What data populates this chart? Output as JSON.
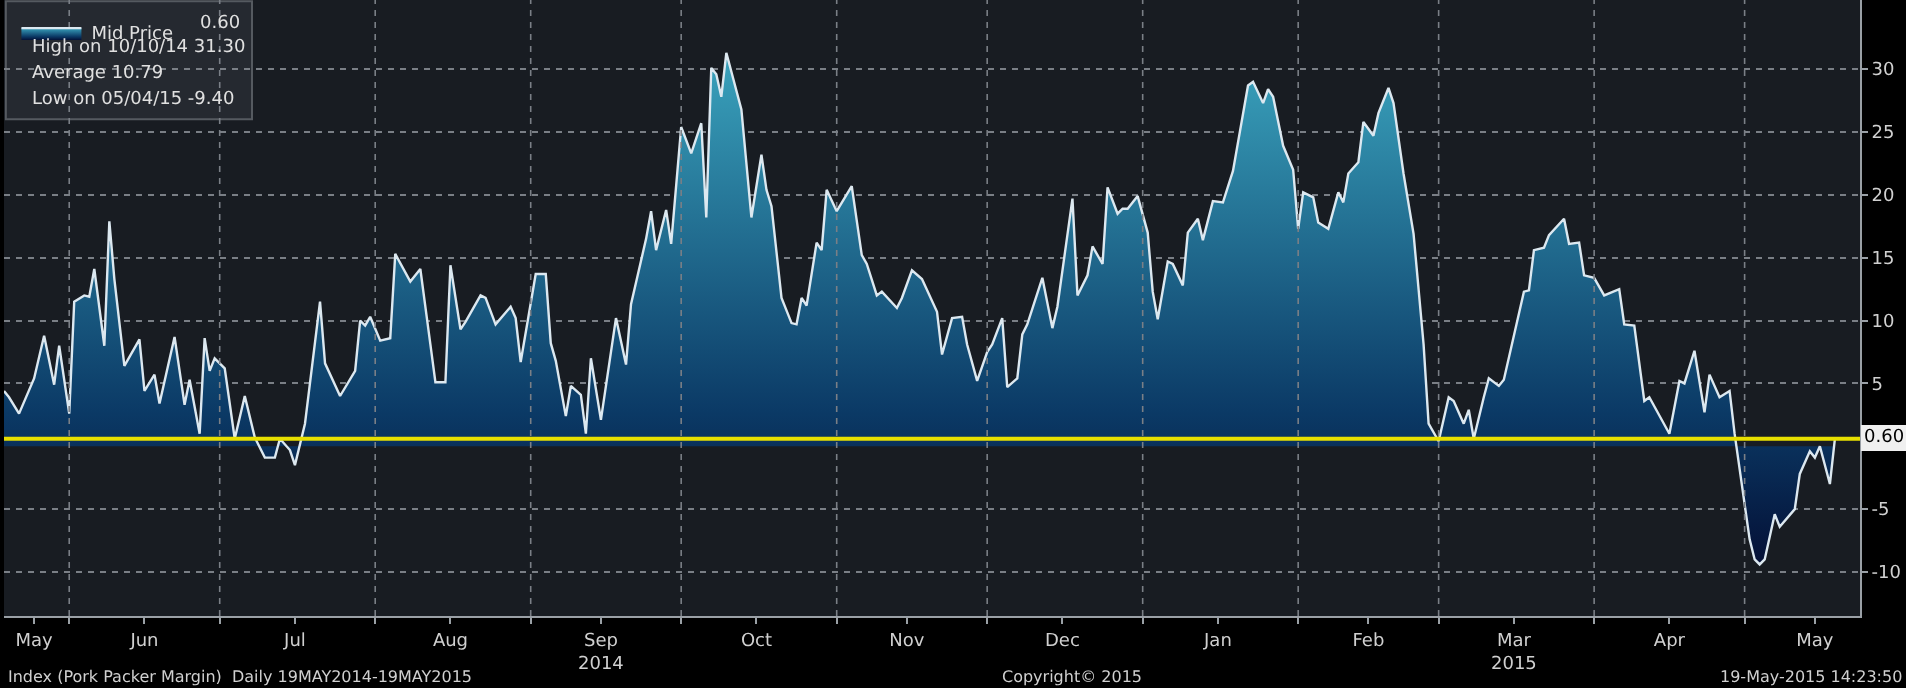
{
  "chart_data": {
    "type": "area",
    "x": [
      "2014-05-19",
      "2014-05-20",
      "2014-05-22",
      "2014-05-25",
      "2014-05-27",
      "2014-05-29",
      "2014-05-30",
      "2014-06-01",
      "2014-06-02",
      "2014-06-04",
      "2014-06-05",
      "2014-06-06",
      "2014-06-08",
      "2014-06-09",
      "2014-06-10",
      "2014-06-12",
      "2014-06-15",
      "2014-06-16",
      "2014-06-18",
      "2014-06-19",
      "2014-06-22",
      "2014-06-24",
      "2014-06-25",
      "2014-06-27",
      "2014-06-28",
      "2014-06-29",
      "2014-06-30",
      "2014-07-02",
      "2014-07-04",
      "2014-07-06",
      "2014-07-08",
      "2014-07-10",
      "2014-07-12",
      "2014-07-13",
      "2014-07-15",
      "2014-07-16",
      "2014-07-18",
      "2014-07-21",
      "2014-07-22",
      "2014-07-25",
      "2014-07-28",
      "2014-07-29",
      "2014-07-30",
      "2014-07-31",
      "2014-08-02",
      "2014-08-04",
      "2014-08-05",
      "2014-08-08",
      "2014-08-10",
      "2014-08-12",
      "2014-08-13",
      "2014-08-15",
      "2014-08-16",
      "2014-08-18",
      "2014-08-19",
      "2014-08-22",
      "2014-08-23",
      "2014-08-25",
      "2014-08-28",
      "2014-08-29",
      "2014-08-30",
      "2014-09-02",
      "2014-09-04",
      "2014-09-05",
      "2014-09-06",
      "2014-09-08",
      "2014-09-09",
      "2014-09-11",
      "2014-09-12",
      "2014-09-13",
      "2014-09-15",
      "2014-09-18",
      "2014-09-20",
      "2014-09-21",
      "2014-09-24",
      "2014-09-25",
      "2014-09-26",
      "2014-09-28",
      "2014-09-29",
      "2014-10-01",
      "2014-10-03",
      "2014-10-05",
      "2014-10-06",
      "2014-10-07",
      "2014-10-08",
      "2014-10-09",
      "2014-10-10",
      "2014-10-13",
      "2014-10-15",
      "2014-10-17",
      "2014-10-18",
      "2014-10-19",
      "2014-10-21",
      "2014-10-23",
      "2014-10-24",
      "2014-10-25",
      "2014-10-26",
      "2014-10-28",
      "2014-10-29",
      "2014-10-30",
      "2014-11-01",
      "2014-11-04",
      "2014-11-06",
      "2014-11-07",
      "2014-11-09",
      "2014-11-10",
      "2014-11-13",
      "2014-11-14",
      "2014-11-16",
      "2014-11-18",
      "2014-11-21",
      "2014-11-22",
      "2014-11-24",
      "2014-11-26",
      "2014-11-27",
      "2014-11-29",
      "2014-12-01",
      "2014-12-02",
      "2014-12-04",
      "2014-12-05",
      "2014-12-07",
      "2014-12-08",
      "2014-12-09",
      "2014-12-12",
      "2014-12-14",
      "2014-12-15",
      "2014-12-18",
      "2014-12-19",
      "2014-12-21",
      "2014-12-22",
      "2014-12-24",
      "2014-12-25",
      "2014-12-27",
      "2014-12-28",
      "2014-12-29",
      "2014-12-31",
      "2015-01-02",
      "2015-01-03",
      "2015-01-04",
      "2015-01-06",
      "2015-01-07",
      "2015-01-09",
      "2015-01-10",
      "2015-01-12",
      "2015-01-13",
      "2015-01-15",
      "2015-01-17",
      "2015-01-19",
      "2015-01-22",
      "2015-01-23",
      "2015-01-25",
      "2015-01-26",
      "2015-01-27",
      "2015-01-29",
      "2015-01-31",
      "2015-02-01",
      "2015-02-02",
      "2015-02-04",
      "2015-02-05",
      "2015-02-07",
      "2015-02-09",
      "2015-02-10",
      "2015-02-11",
      "2015-02-13",
      "2015-02-14",
      "2015-02-16",
      "2015-02-17",
      "2015-02-19",
      "2015-02-20",
      "2015-02-22",
      "2015-02-24",
      "2015-02-26",
      "2015-02-27",
      "2015-03-01",
      "2015-03-03",
      "2015-03-04",
      "2015-03-06",
      "2015-03-07",
      "2015-03-08",
      "2015-03-10",
      "2015-03-11",
      "2015-03-13",
      "2015-03-14",
      "2015-03-18",
      "2015-03-19",
      "2015-03-20",
      "2015-03-22",
      "2015-03-23",
      "2015-03-26",
      "2015-03-27",
      "2015-03-29",
      "2015-03-30",
      "2015-04-01",
      "2015-04-03",
      "2015-04-06",
      "2015-04-07",
      "2015-04-09",
      "2015-04-11",
      "2015-04-12",
      "2015-04-16",
      "2015-04-18",
      "2015-04-19",
      "2015-04-21",
      "2015-04-23",
      "2015-04-24",
      "2015-04-26",
      "2015-04-28",
      "2015-04-29",
      "2015-05-01",
      "2015-05-02",
      "2015-05-03",
      "2015-05-04",
      "2015-05-05",
      "2015-05-07",
      "2015-05-08",
      "2015-05-11",
      "2015-05-12",
      "2015-05-14",
      "2015-05-15",
      "2015-05-16",
      "2015-05-18",
      "2015-05-19"
    ],
    "series": [
      {
        "name": "Mid Price",
        "color": "#dce8f0",
        "values": [
          4.4,
          3.9,
          2.6,
          5.4,
          8.8,
          4.9,
          8.0,
          2.6,
          11.5,
          12.0,
          11.9,
          14.1,
          8.0,
          17.9,
          13.3,
          6.4,
          8.5,
          4.4,
          5.7,
          3.4,
          8.7,
          3.3,
          5.3,
          1.0,
          8.6,
          6.0,
          7.0,
          6.2,
          0.6,
          4.0,
          0.7,
          -0.9,
          -0.9,
          0.6,
          -0.3,
          -1.5,
          1.8,
          11.5,
          6.6,
          4.0,
          6.0,
          10.0,
          9.6,
          10.3,
          8.4,
          8.6,
          15.3,
          13.1,
          14.1,
          8.1,
          5.1,
          5.1,
          14.4,
          9.3,
          9.9,
          12.0,
          11.8,
          9.7,
          11.1,
          10.2,
          6.7,
          13.7,
          13.7,
          8.2,
          6.8,
          2.4,
          4.8,
          4.1,
          1.0,
          7.0,
          2.1,
          10.2,
          6.5,
          11.3,
          16.5,
          18.7,
          15.6,
          18.8,
          16.1,
          25.4,
          23.3,
          25.7,
          18.2,
          30.1,
          29.6,
          27.8,
          31.3,
          26.8,
          18.2,
          23.2,
          20.4,
          19.1,
          11.8,
          9.8,
          9.7,
          11.8,
          11.2,
          16.2,
          15.6,
          20.4,
          18.7,
          20.7,
          15.2,
          14.5,
          12.0,
          12.3,
          11.0,
          11.8,
          14.0,
          13.3,
          10.7,
          7.3,
          10.2,
          10.3,
          8.1,
          5.2,
          7.5,
          8.1,
          10.2,
          4.7,
          5.4,
          8.9,
          9.7,
          13.4,
          9.4,
          11.1,
          19.7,
          12.0,
          13.6,
          15.9,
          14.5,
          20.6,
          18.5,
          18.9,
          18.9,
          19.9,
          17.0,
          12.3,
          10.1,
          14.7,
          14.5,
          12.8,
          17.0,
          18.1,
          16.4,
          19.5,
          19.4,
          21.9,
          28.7,
          29.0,
          27.3,
          28.4,
          27.8,
          23.9,
          22.0,
          17.3,
          20.2,
          19.8,
          17.8,
          17.3,
          20.2,
          19.4,
          21.7,
          22.6,
          25.8,
          24.7,
          26.5,
          28.5,
          27.3,
          21.7,
          16.9,
          8.1,
          1.8,
          0.4,
          3.9,
          3.6,
          1.8,
          2.9,
          0.6,
          3.9,
          5.4,
          4.8,
          5.3,
          12.3,
          12.4,
          15.6,
          15.8,
          16.8,
          18.1,
          16.1,
          16.2,
          13.6,
          13.4,
          12.0,
          12.5,
          9.7,
          9.6,
          3.6,
          3.9,
          1.0,
          5.2,
          5.0,
          7.6,
          2.7,
          5.7,
          3.9,
          4.4,
          1.0,
          -4.6,
          -7.4,
          -9.0,
          -9.4,
          -9.0,
          -5.4,
          -6.4,
          -5.0,
          -2.2,
          -0.4,
          -0.9,
          0.0,
          -3.0,
          0.6
        ]
      }
    ],
    "xlim": [
      "2014-05-19",
      "2015-05-24"
    ],
    "xticks": [
      {
        "value": "2014-05-25",
        "label": "May"
      },
      {
        "value": "2014-06-01",
        "label": null
      },
      {
        "value": "2014-06-16",
        "label": "Jun"
      },
      {
        "value": "2014-07-01",
        "label": null
      },
      {
        "value": "2014-07-16",
        "label": "Jul"
      },
      {
        "value": "2014-08-01",
        "label": null
      },
      {
        "value": "2014-08-16",
        "label": "Aug"
      },
      {
        "value": "2014-09-01",
        "label": null
      },
      {
        "value": "2014-09-15",
        "label": "Sep\n2014"
      },
      {
        "value": "2014-10-01",
        "label": null
      },
      {
        "value": "2014-10-16",
        "label": "Oct"
      },
      {
        "value": "2014-11-01",
        "label": null
      },
      {
        "value": "2014-11-15",
        "label": "Nov"
      },
      {
        "value": "2014-12-01",
        "label": null
      },
      {
        "value": "2014-12-16",
        "label": "Dec"
      },
      {
        "value": "2015-01-01",
        "label": null
      },
      {
        "value": "2015-01-16",
        "label": "Jan"
      },
      {
        "value": "2015-02-01",
        "label": null
      },
      {
        "value": "2015-02-15",
        "label": "Feb"
      },
      {
        "value": "2015-03-01",
        "label": null
      },
      {
        "value": "2015-03-16",
        "label": "Mar\n2015"
      },
      {
        "value": "2015-04-01",
        "label": null
      },
      {
        "value": "2015-04-16",
        "label": "Apr"
      },
      {
        "value": "2015-05-01",
        "label": null
      },
      {
        "value": "2015-05-15",
        "label": "May"
      }
    ],
    "ylim": [
      -13.5,
      35.5
    ],
    "yticks": [
      -10,
      -5,
      5,
      10,
      15,
      20,
      25,
      30
    ],
    "grid": true,
    "legend": "top left",
    "ref_lines": [
      {
        "axis": "y",
        "value": 0.6,
        "label": "0.60",
        "color": "#e8e000"
      }
    ],
    "annotations": [
      "0.60",
      "High on 10/10/14 31.30",
      "Average 10.79",
      "Low on 05/04/15 -9.40",
      "Index (Pork Packer Margin)  Daily 19MAY2014-19MAY2015",
      "Copyright© 2015",
      "19-May-2015 14:23:50"
    ]
  }
}
